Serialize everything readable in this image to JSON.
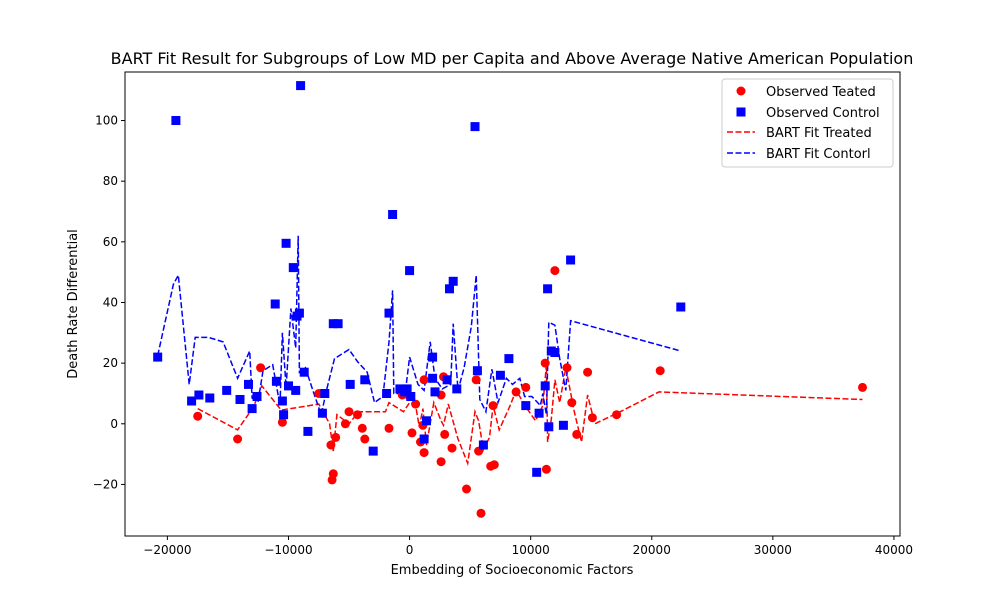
{
  "chart_data": {
    "type": "scatter",
    "title": "BART Fit Result for Subgroups of Low MD per Capita and Above Average Native American Population",
    "xlabel": "Embedding of Socioeconomic Factors",
    "ylabel": "Death Rate Differential",
    "xlim": [
      -23500,
      40500
    ],
    "ylim": [
      -37,
      116
    ],
    "xticks": [
      -20000,
      -10000,
      0,
      10000,
      20000,
      30000,
      40000
    ],
    "yticks": [
      -20,
      0,
      20,
      40,
      60,
      80,
      100
    ],
    "grid": false,
    "legend_position": "top-right",
    "colors": {
      "treated": "#ff0000",
      "control": "#0000ff"
    },
    "series": [
      {
        "name": "Observed Teated",
        "kind": "scatter",
        "marker": "circle",
        "color": "#ff0000",
        "points": [
          [
            -17500,
            2.5
          ],
          [
            -14200,
            -5
          ],
          [
            -12300,
            18.5
          ],
          [
            -10500,
            0.5
          ],
          [
            -7500,
            10
          ],
          [
            -7200,
            3.5
          ],
          [
            -6500,
            -7
          ],
          [
            -6400,
            -18.5
          ],
          [
            -6300,
            -16.5
          ],
          [
            -6100,
            -4.5
          ],
          [
            -5300,
            0
          ],
          [
            -5000,
            4
          ],
          [
            -4300,
            3
          ],
          [
            -3900,
            -1.5
          ],
          [
            -3700,
            -5
          ],
          [
            -1700,
            -1.5
          ],
          [
            -600,
            9.5
          ],
          [
            0,
            9
          ],
          [
            200,
            -3
          ],
          [
            500,
            6.5
          ],
          [
            900,
            -6
          ],
          [
            1100,
            -0.5
          ],
          [
            1200,
            -9.5
          ],
          [
            1200,
            14.5
          ],
          [
            2600,
            9.5
          ],
          [
            2600,
            -12.5
          ],
          [
            2800,
            15.5
          ],
          [
            2900,
            -3.5
          ],
          [
            3500,
            -8
          ],
          [
            4700,
            -21.5
          ],
          [
            5500,
            14.5
          ],
          [
            5700,
            -9
          ],
          [
            5900,
            -29.5
          ],
          [
            6700,
            -14
          ],
          [
            6900,
            6
          ],
          [
            7000,
            -13.5
          ],
          [
            8800,
            10.5
          ],
          [
            9600,
            12
          ],
          [
            11200,
            20
          ],
          [
            11300,
            -15
          ],
          [
            12000,
            50.5
          ],
          [
            13000,
            18.5
          ],
          [
            13400,
            7
          ],
          [
            13800,
            -3.5
          ],
          [
            14700,
            17
          ],
          [
            15100,
            2
          ],
          [
            17100,
            3
          ],
          [
            20700,
            17.5
          ],
          [
            37400,
            12
          ]
        ]
      },
      {
        "name": "Observed Control",
        "kind": "scatter",
        "marker": "square",
        "color": "#0000ff",
        "points": [
          [
            -20800,
            22
          ],
          [
            -19300,
            100
          ],
          [
            -18000,
            7.5
          ],
          [
            -17400,
            9.5
          ],
          [
            -16500,
            8.5
          ],
          [
            -15100,
            11
          ],
          [
            -14000,
            8
          ],
          [
            -13300,
            13
          ],
          [
            -13000,
            5
          ],
          [
            -12600,
            9
          ],
          [
            -11100,
            39.5
          ],
          [
            -11000,
            14
          ],
          [
            -10500,
            7.5
          ],
          [
            -10400,
            3
          ],
          [
            -10200,
            59.5
          ],
          [
            -10000,
            12.5
          ],
          [
            -9600,
            51.5
          ],
          [
            -9400,
            11
          ],
          [
            -9300,
            35.5
          ],
          [
            -9000,
            111.5
          ],
          [
            -9100,
            36.5
          ],
          [
            -8700,
            17
          ],
          [
            -8400,
            -2.5
          ],
          [
            -7200,
            3.5
          ],
          [
            -7000,
            10
          ],
          [
            -6300,
            33
          ],
          [
            -5900,
            33
          ],
          [
            -4900,
            13
          ],
          [
            -3700,
            14.5
          ],
          [
            -3000,
            -9
          ],
          [
            -1900,
            10
          ],
          [
            -1700,
            36.5
          ],
          [
            -1400,
            69
          ],
          [
            -800,
            11.5
          ],
          [
            -400,
            10.5
          ],
          [
            -200,
            11.5
          ],
          [
            0,
            50.5
          ],
          [
            100,
            9
          ],
          [
            1200,
            -5
          ],
          [
            1400,
            1
          ],
          [
            1900,
            22
          ],
          [
            1900,
            15
          ],
          [
            2100,
            10.5
          ],
          [
            3100,
            14.5
          ],
          [
            3300,
            44.5
          ],
          [
            3600,
            47
          ],
          [
            3900,
            11.5
          ],
          [
            5400,
            98
          ],
          [
            5600,
            17.5
          ],
          [
            6100,
            -7
          ],
          [
            7500,
            16
          ],
          [
            8200,
            21.5
          ],
          [
            9600,
            6
          ],
          [
            10500,
            -16
          ],
          [
            10700,
            3.5
          ],
          [
            11200,
            12.5
          ],
          [
            11400,
            44.5
          ],
          [
            11500,
            -1
          ],
          [
            11700,
            24
          ],
          [
            12000,
            23.5
          ],
          [
            12700,
            -0.5
          ],
          [
            13300,
            54
          ],
          [
            22400,
            38.5
          ]
        ]
      },
      {
        "name": "BART Fit Treated",
        "kind": "line",
        "dash": "dashed",
        "color": "#ff0000",
        "points": [
          [
            -17500,
            5
          ],
          [
            -14200,
            -2
          ],
          [
            -12900,
            5.5
          ],
          [
            -12200,
            12.5
          ],
          [
            -10600,
            4.5
          ],
          [
            -7500,
            6.5
          ],
          [
            -6600,
            0
          ],
          [
            -6300,
            -9
          ],
          [
            -6000,
            3
          ],
          [
            -5000,
            0
          ],
          [
            -4200,
            4
          ],
          [
            -2000,
            4
          ],
          [
            -1700,
            7
          ],
          [
            -500,
            4
          ],
          [
            0,
            7
          ],
          [
            500,
            6
          ],
          [
            800,
            -1
          ],
          [
            1100,
            5
          ],
          [
            1400,
            -7
          ],
          [
            2000,
            7
          ],
          [
            2600,
            1
          ],
          [
            2800,
            -0.5
          ],
          [
            3200,
            6.5
          ],
          [
            4000,
            -5
          ],
          [
            4800,
            -13
          ],
          [
            5400,
            4
          ],
          [
            5700,
            1
          ],
          [
            6100,
            -8.5
          ],
          [
            6600,
            -4.5
          ],
          [
            6900,
            6
          ],
          [
            7400,
            -2
          ],
          [
            8300,
            6
          ],
          [
            8800,
            11
          ],
          [
            9700,
            5
          ],
          [
            10400,
            1
          ],
          [
            11000,
            6
          ],
          [
            11300,
            19.5
          ],
          [
            11400,
            -6
          ],
          [
            11700,
            1.5
          ],
          [
            12000,
            14.5
          ],
          [
            12400,
            7
          ],
          [
            12900,
            18.5
          ],
          [
            13600,
            4
          ],
          [
            14200,
            -6
          ],
          [
            14700,
            9.5
          ],
          [
            15300,
            0
          ],
          [
            17400,
            4
          ],
          [
            20600,
            10.5
          ],
          [
            37400,
            8
          ]
        ]
      },
      {
        "name": "BART Fit Contorl",
        "kind": "line",
        "dash": "dashed",
        "color": "#0000ff",
        "points": [
          [
            -20800,
            22.5
          ],
          [
            -19500,
            46
          ],
          [
            -19100,
            49
          ],
          [
            -18200,
            13
          ],
          [
            -17700,
            28.5
          ],
          [
            -16600,
            28.5
          ],
          [
            -15400,
            27
          ],
          [
            -14200,
            15
          ],
          [
            -13200,
            24
          ],
          [
            -13000,
            8.5
          ],
          [
            -12500,
            7.5
          ],
          [
            -12100,
            17.5
          ],
          [
            -11300,
            19.5
          ],
          [
            -10700,
            6
          ],
          [
            -10500,
            30
          ],
          [
            -10200,
            12
          ],
          [
            -9800,
            38
          ],
          [
            -9400,
            25
          ],
          [
            -9200,
            62
          ],
          [
            -9100,
            17
          ],
          [
            -8600,
            18.5
          ],
          [
            -7900,
            10
          ],
          [
            -7300,
            3
          ],
          [
            -6800,
            12
          ],
          [
            -6200,
            21.5
          ],
          [
            -5000,
            24.5
          ],
          [
            -4300,
            20.5
          ],
          [
            -3500,
            17
          ],
          [
            -2900,
            7
          ],
          [
            -2200,
            9
          ],
          [
            -1700,
            27
          ],
          [
            -1400,
            44
          ],
          [
            -1300,
            10
          ],
          [
            -700,
            10
          ],
          [
            -300,
            12
          ],
          [
            0,
            22
          ],
          [
            700,
            13
          ],
          [
            1200,
            11
          ],
          [
            1700,
            27
          ],
          [
            2100,
            15
          ],
          [
            2700,
            11.5
          ],
          [
            3400,
            13
          ],
          [
            3600,
            33
          ],
          [
            4000,
            11
          ],
          [
            4500,
            18.5
          ],
          [
            5100,
            32
          ],
          [
            5500,
            49
          ],
          [
            5800,
            8
          ],
          [
            6300,
            4
          ],
          [
            6800,
            18
          ],
          [
            7300,
            7
          ],
          [
            8000,
            15
          ],
          [
            8500,
            13
          ],
          [
            9100,
            15
          ],
          [
            9500,
            9
          ],
          [
            10100,
            9
          ],
          [
            10800,
            6
          ],
          [
            11000,
            10
          ],
          [
            11300,
            3
          ],
          [
            11500,
            33.5
          ],
          [
            12000,
            32.5
          ],
          [
            12400,
            21.5
          ],
          [
            12900,
            11
          ],
          [
            13300,
            34
          ],
          [
            22400,
            24
          ]
        ]
      }
    ]
  }
}
